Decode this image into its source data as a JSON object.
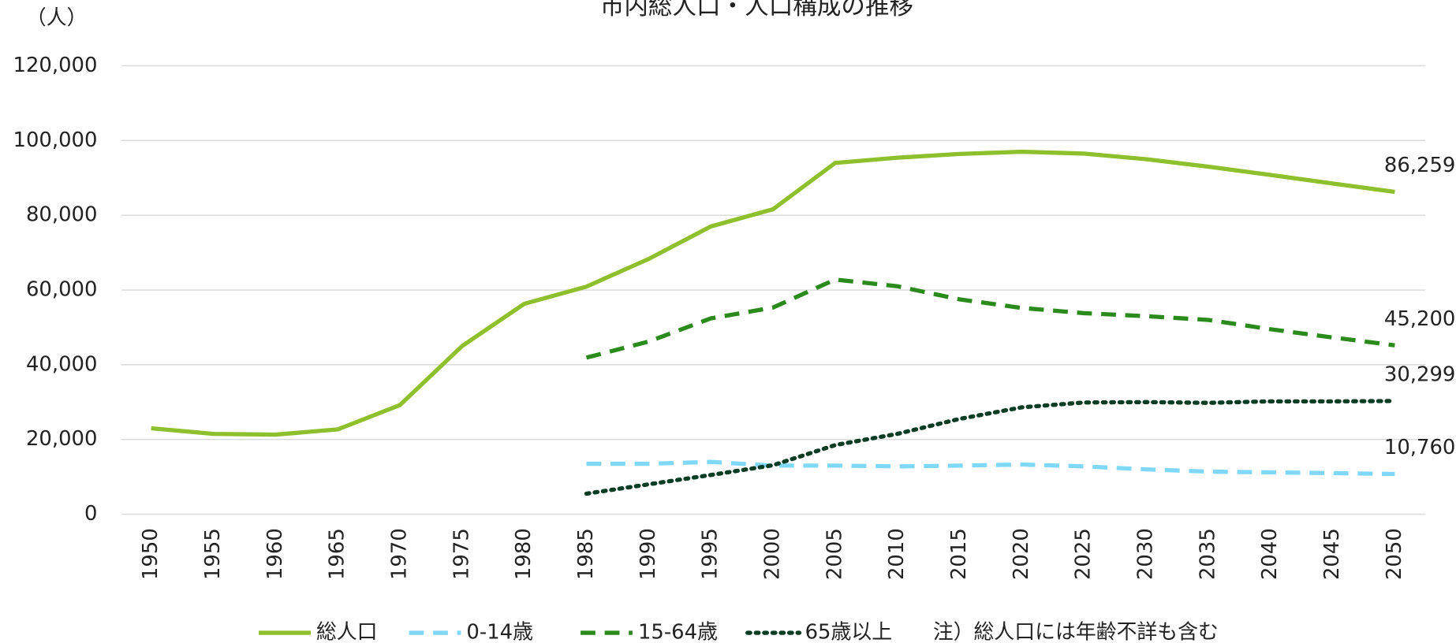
{
  "chart_data": {
    "type": "line",
    "title": "市内総人口・人口構成の推移",
    "y_label": "（人）",
    "note": "注）総人口には年齢不詳も含む",
    "categories": [
      "1950",
      "1955",
      "1960",
      "1965",
      "1970",
      "1975",
      "1980",
      "1985",
      "1990",
      "1995",
      "2000",
      "2005",
      "2010",
      "2015",
      "2020",
      "2025",
      "2030",
      "2035",
      "2040",
      "2045",
      "2050"
    ],
    "ylim": [
      0,
      120000
    ],
    "yticks": [
      0,
      {
        "value": 20000,
        "label": "20,000"
      },
      {
        "value": 40000,
        "label": "40,000"
      },
      {
        "value": 60000,
        "label": "60,000"
      },
      {
        "value": 80000,
        "label": "80,000"
      },
      {
        "value": 100000,
        "label": "100,000"
      },
      {
        "value": 120000,
        "label": "120,000"
      }
    ],
    "grid": true,
    "legend": "bottom",
    "series": [
      {
        "name": "総人口",
        "color": "#8dc02c",
        "dash": "solid",
        "values": [
          23000,
          21500,
          21300,
          22700,
          29200,
          45000,
          56300,
          60900,
          68300,
          77000,
          81600,
          94000,
          95400,
          96400,
          97000,
          96500,
          95000,
          93000,
          90800,
          88500,
          86259
        ],
        "value_labels": [
          null,
          null,
          null,
          null,
          null,
          null,
          null,
          null,
          null,
          null,
          null,
          null,
          null,
          null,
          null,
          null,
          null,
          null,
          null,
          null,
          "86,259"
        ]
      },
      {
        "name": "0-14歳",
        "color": "#7fd8f7",
        "dash": "dashed",
        "values": [
          null,
          null,
          null,
          null,
          null,
          null,
          null,
          13500,
          13500,
          14000,
          13000,
          13000,
          12800,
          13000,
          13300,
          12800,
          12000,
          11400,
          11200,
          11000,
          10760
        ],
        "value_labels": [
          null,
          null,
          null,
          null,
          null,
          null,
          null,
          null,
          null,
          null,
          null,
          null,
          null,
          null,
          null,
          null,
          null,
          null,
          null,
          null,
          "10,760"
        ]
      },
      {
        "name": "15-64歳",
        "color": "#2a8a1c",
        "dash": "dashed",
        "values": [
          null,
          null,
          null,
          null,
          null,
          null,
          null,
          41900,
          46200,
          52400,
          55300,
          62800,
          61000,
          57500,
          55200,
          53800,
          53000,
          52000,
          49500,
          47300,
          45200
        ],
        "value_labels": [
          null,
          null,
          null,
          null,
          null,
          null,
          null,
          null,
          null,
          null,
          null,
          null,
          null,
          null,
          null,
          null,
          null,
          null,
          null,
          null,
          "45,200"
        ]
      },
      {
        "name": "65歳以上",
        "color": "#0b3d24",
        "dash": "dotted",
        "values": [
          null,
          null,
          null,
          null,
          null,
          null,
          null,
          5500,
          8000,
          10500,
          13100,
          18500,
          21500,
          25500,
          28600,
          29900,
          30000,
          29800,
          30200,
          30200,
          30299
        ],
        "value_labels": [
          null,
          null,
          null,
          null,
          null,
          null,
          null,
          null,
          null,
          null,
          null,
          null,
          null,
          null,
          null,
          null,
          null,
          null,
          null,
          null,
          "30,299"
        ]
      }
    ]
  }
}
